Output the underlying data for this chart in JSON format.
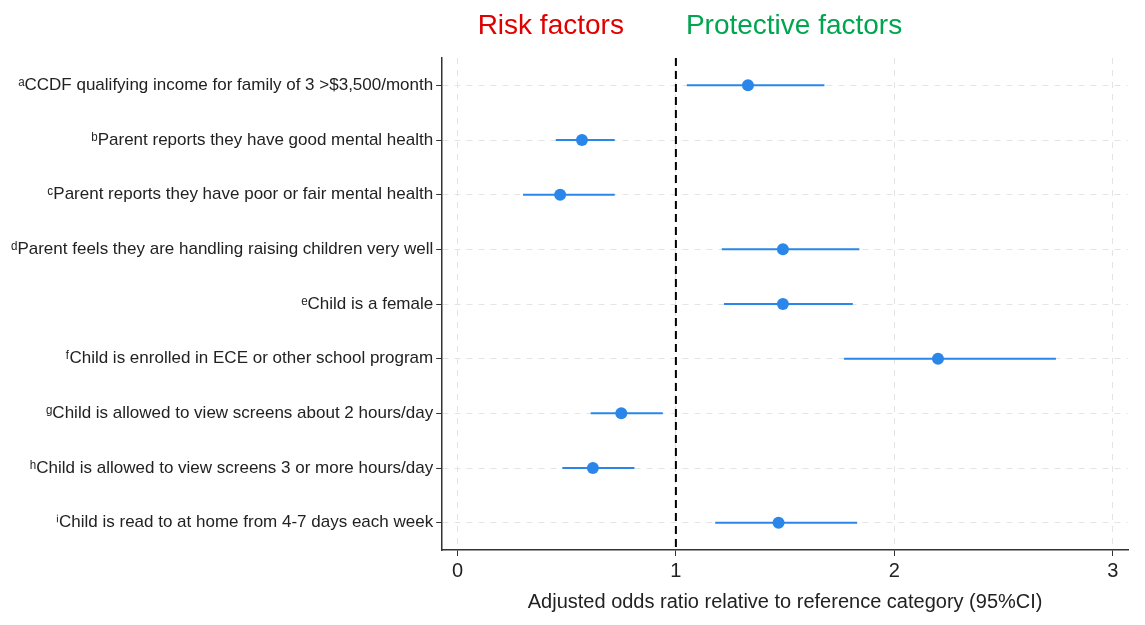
{
  "chart_data": {
    "type": "scatter",
    "orientation": "horizontal",
    "categories": [
      "ᵃCCDF qualifying income for family of 3 >$3,500/month",
      "ᵇParent reports they have good mental health",
      "ᶜParent reports they have poor or fair mental health",
      "ᵈParent feels they are handling raising children very well",
      "ᵉChild is a female",
      "ᶠChild is enrolled in ECE or other school program",
      "ᵍChild is allowed to view screens about 2 hours/day",
      "ʰChild is allowed to view screens 3 or more hours/day",
      "ⁱChild is read to at home from 4-7 days each week"
    ],
    "values": [
      1.33,
      0.57,
      0.47,
      1.49,
      1.49,
      2.2,
      0.75,
      0.62,
      1.47
    ],
    "errors": [
      [
        1.05,
        1.68
      ],
      [
        0.45,
        0.72
      ],
      [
        0.3,
        0.72
      ],
      [
        1.21,
        1.84
      ],
      [
        1.22,
        1.81
      ],
      [
        1.77,
        2.74
      ],
      [
        0.61,
        0.94
      ],
      [
        0.48,
        0.81
      ],
      [
        1.18,
        1.83
      ]
    ],
    "color": "#2a86e8",
    "marker": "circle",
    "xlim": [
      -0.07,
      3.07
    ],
    "xticks": [
      0,
      1,
      2,
      3
    ],
    "xlabel": "Adjusted odds ratio relative to reference category (95%CI)",
    "grid": true,
    "ref_lines": [
      {
        "axis": "x",
        "value": 1,
        "line_style": "dashed",
        "color": "#000000"
      }
    ],
    "annotations": [
      "Risk factors",
      "Protective factors"
    ]
  }
}
